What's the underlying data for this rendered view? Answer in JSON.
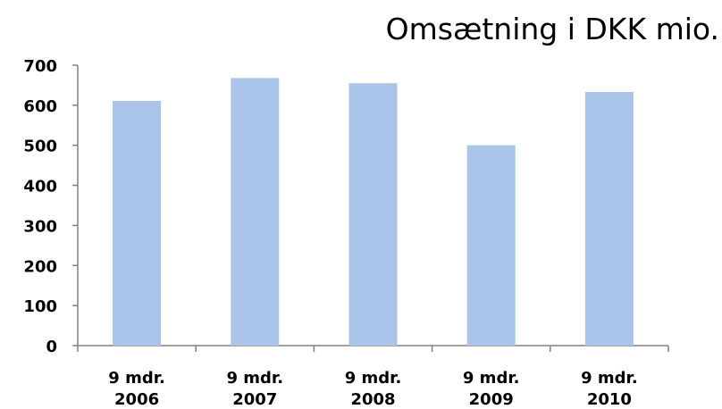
{
  "chart_data": {
    "type": "bar",
    "title": "Omsætning i DKK mio.",
    "categories": [
      [
        "9 mdr.",
        "2006"
      ],
      [
        "9 mdr.",
        "2007"
      ],
      [
        "9 mdr.",
        "2008"
      ],
      [
        "9 mdr.",
        "2009"
      ],
      [
        "9 mdr.",
        "2010"
      ]
    ],
    "values": [
      611,
      668,
      655,
      500,
      633
    ],
    "ylim": [
      0,
      700
    ],
    "yticks": [
      0,
      100,
      200,
      300,
      400,
      500,
      600,
      700
    ],
    "grid": false,
    "legend": "none",
    "bar_color": "#a9c4e8",
    "axis_color": "#808080"
  }
}
